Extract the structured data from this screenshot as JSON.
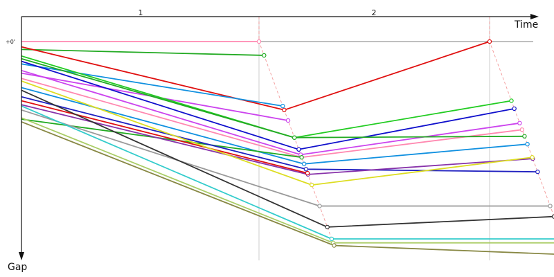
{
  "chart_data": {
    "type": "line",
    "xlabel": "Time",
    "ylabel": "Gap",
    "y_tick_label": "+0'",
    "laps": [
      "1",
      "2"
    ],
    "colors": {
      "axis": "#111111",
      "leader_line": "#555555",
      "lap_divider": "#cccccc",
      "leader_trace": "#f08080"
    },
    "series": [
      {
        "color": "#ff88b0",
        "values": [
          0.0,
          0.0,
          null
        ]
      },
      {
        "color": "#22aa22",
        "values": [
          6.0,
          10.5,
          null
        ]
      },
      {
        "color": "#e01010",
        "values": [
          4.0,
          52.0,
          0.0
        ]
      },
      {
        "color": "#1090e0",
        "values": [
          17.0,
          49.0,
          null
        ]
      },
      {
        "color": "#cc44ee",
        "values": [
          24.0,
          60.0,
          null
        ]
      },
      {
        "color": "#22cc22",
        "values": [
          11.0,
          73.0,
          45.0
        ]
      },
      {
        "color": "#1010cc",
        "values": [
          15.0,
          82.0,
          51.0
        ]
      },
      {
        "color": "#cc44ee",
        "values": [
          22.0,
          86.0,
          62.0
        ]
      },
      {
        "color": "#ff88b0",
        "values": [
          28.0,
          88.0,
          67.0
        ]
      },
      {
        "color": "#22aa22",
        "values": [
          13.0,
          73.0,
          72.0
        ]
      },
      {
        "color": "#1090e0",
        "values": [
          35.0,
          93.0,
          78.0
        ]
      },
      {
        "color": "#22aa22",
        "values": [
          59.0,
          88.0,
          null
        ]
      },
      {
        "color": "#2020c0",
        "values": [
          42.0,
          97.0,
          99.0
        ]
      },
      {
        "color": "#8833aa",
        "values": [
          48.0,
          101.0,
          89.0
        ]
      },
      {
        "color": "#e01010",
        "values": [
          45.0,
          100.0,
          null
        ]
      },
      {
        "color": "#dddd22",
        "values": [
          30.0,
          109.0,
          88.0
        ]
      },
      {
        "color": "#999999",
        "values": [
          52.0,
          125.0,
          125.0
        ]
      },
      {
        "color": "#333333",
        "values": [
          37.0,
          141.0,
          133.0
        ]
      },
      {
        "color": "#33cccc",
        "values": [
          49.0,
          150.0,
          150.0
        ]
      },
      {
        "color": "#aacc66",
        "values": [
          58.0,
          153.0,
          153.0
        ]
      },
      {
        "color": "#888844",
        "values": [
          61.0,
          155.0,
          162.0
        ]
      }
    ]
  }
}
